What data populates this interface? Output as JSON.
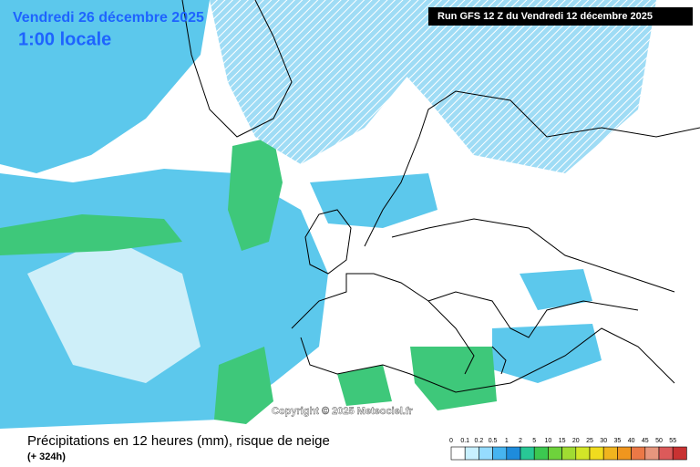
{
  "header": {
    "date": "Vendredi 26 décembre 2025",
    "time": "1:00 locale",
    "run": "Run GFS 12 Z du Vendredi 12 décembre 2025"
  },
  "map": {
    "copyright": "Copyright © 2025 Meteociel.fr"
  },
  "footer": {
    "title": "Précipitations en 12 heures (mm), risque de neige",
    "subtitle": "(+ 324h)"
  },
  "legend": {
    "labels": [
      "0",
      "0.1",
      "0.2",
      "0.5",
      "1",
      "2",
      "5",
      "10",
      "15",
      "20",
      "25",
      "30",
      "35",
      "40",
      "45",
      "50",
      "55"
    ],
    "colors": [
      "#ffffff",
      "#c8f0ff",
      "#96dcff",
      "#46b4f0",
      "#1e8cdc",
      "#28c896",
      "#3cc850",
      "#6ed23c",
      "#a0dc32",
      "#d2e628",
      "#f0dc1e",
      "#f0b41e",
      "#f0961e",
      "#eb7846",
      "#e6967d",
      "#dc5a5a",
      "#c83232"
    ]
  }
}
